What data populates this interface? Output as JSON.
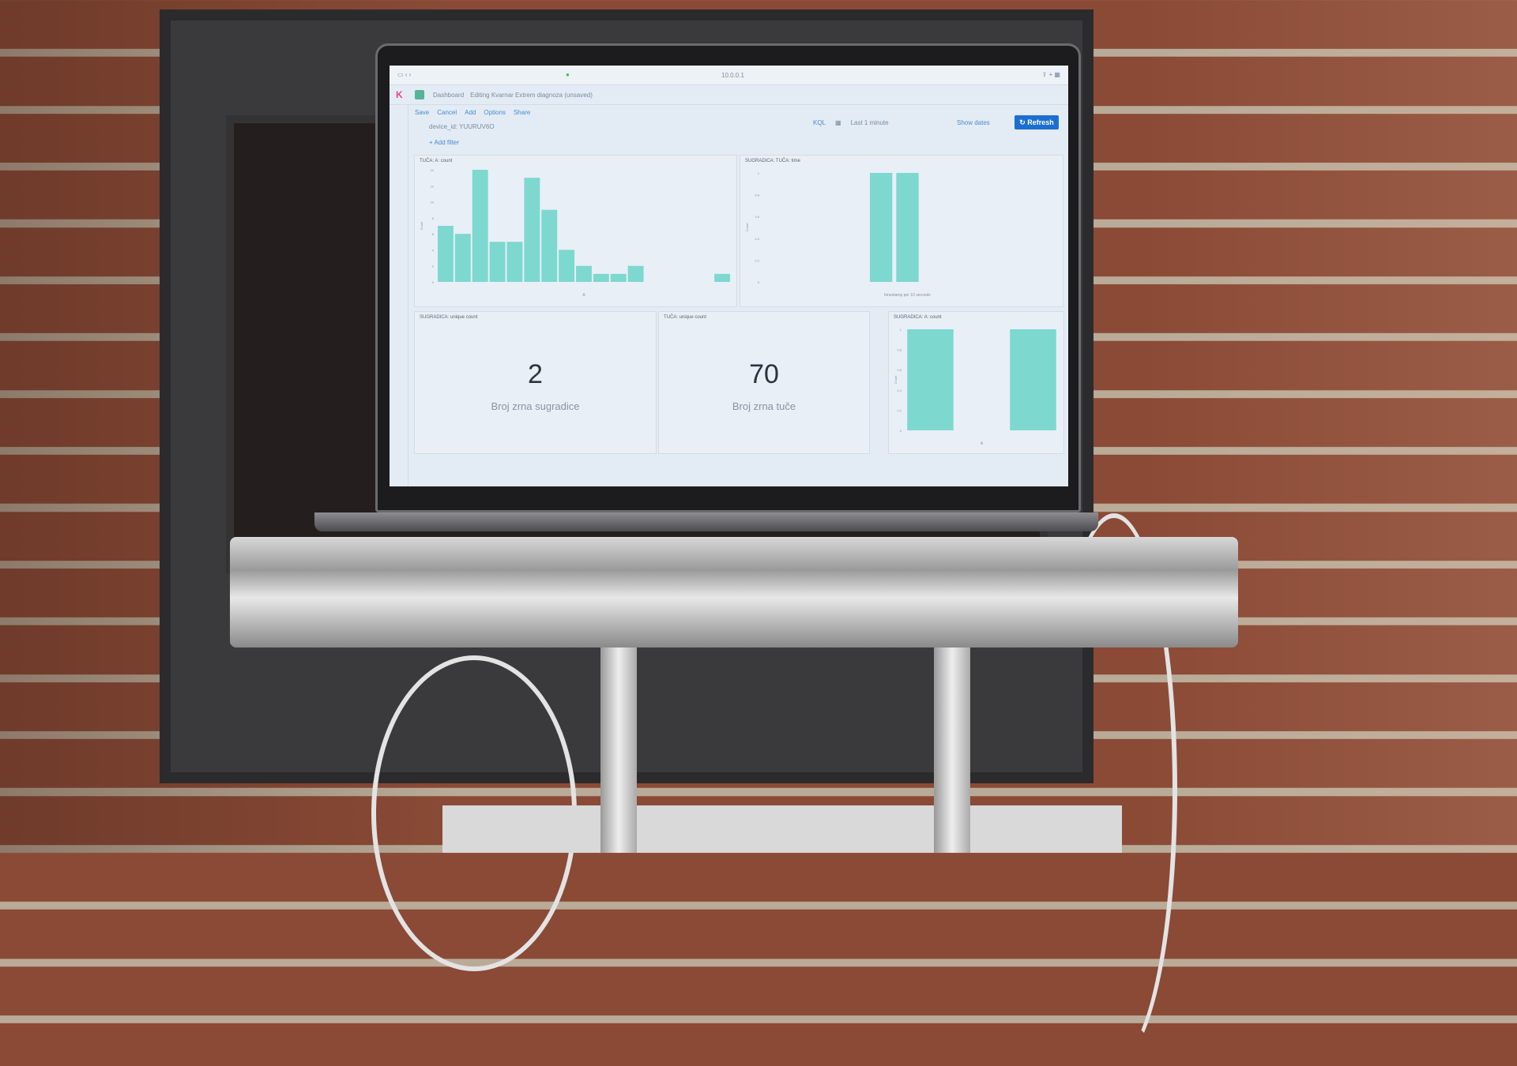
{
  "browser": {
    "url": "10.0.0.1"
  },
  "header": {
    "breadcrumb": "Dashboard",
    "title": "Editing Kvarnar Extrem diagnoza (unsaved)"
  },
  "menu": [
    "Save",
    "Cancel",
    "Add",
    "Options",
    "Share"
  ],
  "filter": {
    "query": "device_id: YUURUV6O",
    "add_filter": "+ Add filter",
    "kql": "KQL",
    "time": "Last 1 minute",
    "show_dates": "Show dates",
    "refresh": "Refresh"
  },
  "metrics": [
    {
      "title": "SUGRADICA: unique count",
      "value": "2",
      "label": "Broj zrna sugradice"
    },
    {
      "title": "TUČA: unique count",
      "value": "70",
      "label": "Broj zrna tuče"
    }
  ],
  "colors": {
    "bar": "#7dd8d0",
    "accent": "#1c6fd1"
  },
  "chart_data": [
    {
      "type": "bar",
      "title": "TUČA: A: count",
      "xlabel": "A",
      "ylabel": "Count",
      "ylim": [
        0,
        14
      ],
      "yticks": [
        0,
        2,
        4,
        6,
        8,
        10,
        12,
        14
      ],
      "values": [
        7,
        6,
        14,
        5,
        5,
        13,
        9,
        4,
        2,
        1,
        1,
        2,
        0,
        0,
        0,
        0,
        1
      ]
    },
    {
      "type": "bar",
      "title": "SUGRADICA: TUČA: time",
      "xlabel": "timestamp per 10 seconds",
      "ylabel": "Count",
      "ylim": [
        0,
        1
      ],
      "yticks": [
        0,
        0.2,
        0.4,
        0.6,
        0.8,
        1
      ],
      "values": [
        0,
        0,
        0,
        0,
        1,
        1,
        0,
        0,
        0,
        0,
        0
      ]
    },
    {
      "type": "bar",
      "title": "SUGRADICA: A: count",
      "xlabel": "A",
      "ylabel": "Count",
      "ylim": [
        0,
        1
      ],
      "yticks": [
        0,
        0.2,
        0.4,
        0.6,
        0.8,
        1
      ],
      "values": [
        1,
        0,
        1
      ]
    }
  ]
}
